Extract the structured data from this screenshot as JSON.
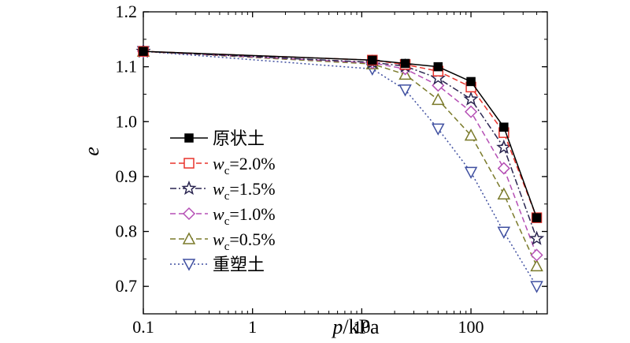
{
  "chart_data": {
    "type": "line",
    "xscale": "log",
    "xlabel_var": "p",
    "xlabel_unit": "/kPa",
    "ylabel": "e",
    "xlim": [
      0.1,
      500
    ],
    "ylim": [
      0.65,
      1.2
    ],
    "xticks": [
      "0.1",
      "1",
      "10",
      "100"
    ],
    "yticks": [
      "0.7",
      "0.8",
      "0.9",
      "1.0",
      "1.1",
      "1.2"
    ],
    "x": [
      0.1,
      12.5,
      25,
      50,
      100,
      200,
      400
    ],
    "series": [
      {
        "name": "原状土",
        "values": [
          1.128,
          1.112,
          1.106,
          1.1,
          1.073,
          0.99,
          0.825
        ],
        "color": "#000000",
        "marker": "filled-square",
        "dash": "solid"
      },
      {
        "name_prefix": "w",
        "name_sub": "c",
        "name_suffix": "=2.0%",
        "values": [
          1.128,
          1.112,
          1.104,
          1.092,
          1.063,
          0.98,
          0.825
        ],
        "color": "#e8332c",
        "marker": "open-square",
        "dash": "dashed"
      },
      {
        "name_prefix": "w",
        "name_sub": "c",
        "name_suffix": "=1.5%",
        "values": [
          1.128,
          1.108,
          1.101,
          1.079,
          1.041,
          0.953,
          0.787
        ],
        "color": "#2a2550",
        "marker": "open-star",
        "dash": "dashdot"
      },
      {
        "name_prefix": "w",
        "name_sub": "c",
        "name_suffix": "=1.0%",
        "values": [
          1.128,
          1.107,
          1.096,
          1.066,
          1.018,
          0.915,
          0.757
        ],
        "color": "#b54fb5",
        "marker": "open-diamond",
        "dash": "dashed"
      },
      {
        "name_prefix": "w",
        "name_sub": "c",
        "name_suffix": "=0.5%",
        "values": [
          1.128,
          1.105,
          1.086,
          1.04,
          0.975,
          0.868,
          0.737
        ],
        "color": "#7a7a2a",
        "marker": "open-triangle-up",
        "dash": "dashed"
      },
      {
        "name": "重塑土",
        "values": [
          1.128,
          1.096,
          1.058,
          0.987,
          0.908,
          0.799,
          0.7
        ],
        "color": "#3f4fa0",
        "marker": "open-triangle-down",
        "dash": "dotted"
      }
    ],
    "legend_position": "center-left",
    "grid": false
  }
}
